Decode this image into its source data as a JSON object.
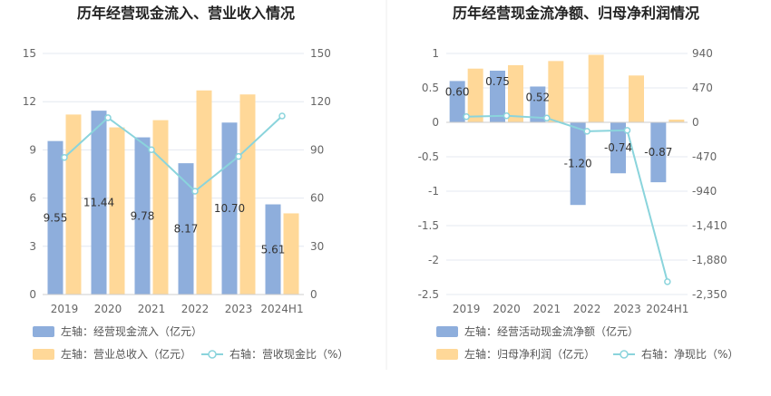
{
  "chart_data": [
    {
      "type": "bar+line",
      "title": "历年经营现金流入、营业收入情况",
      "categories": [
        "2019",
        "2020",
        "2021",
        "2022",
        "2023",
        "2024H1"
      ],
      "left_axis": {
        "ticks": [
          "0",
          "3",
          "6",
          "9",
          "12",
          "15"
        ],
        "range": [
          0,
          15
        ]
      },
      "right_axis": {
        "ticks": [
          "0",
          "30",
          "60",
          "90",
          "120",
          "150"
        ],
        "range": [
          0,
          150
        ]
      },
      "grid": true,
      "legend_position": "bottom",
      "series": [
        {
          "name": "左轴：经营现金流入（亿元）",
          "kind": "bar",
          "axis": "left",
          "color": "#8eaedc",
          "values": [
            9.55,
            11.44,
            9.78,
            8.17,
            10.7,
            5.61
          ],
          "labels": [
            "9.55",
            "11.44",
            "9.78",
            "8.17",
            "10.70",
            "5.61"
          ]
        },
        {
          "name": "左轴：营业总收入（亿元）",
          "kind": "bar",
          "axis": "left",
          "color": "#ffd898",
          "values": [
            11.2,
            10.4,
            10.85,
            12.7,
            12.45,
            5.05
          ]
        },
        {
          "name": "右轴：营收现金比（%）",
          "kind": "line",
          "axis": "right",
          "color": "#8ad4dc",
          "values": [
            85.3,
            110.0,
            90.1,
            64.3,
            85.9,
            111.1
          ]
        }
      ]
    },
    {
      "type": "bar+line",
      "title": "历年经营现金流净额、归母净利润情况",
      "categories": [
        "2019",
        "2020",
        "2021",
        "2022",
        "2023",
        "2024H1"
      ],
      "left_axis": {
        "ticks": [
          "-2.5",
          "-2",
          "-1.5",
          "-1",
          "-0.5",
          "0",
          "0.5",
          "1"
        ],
        "range": [
          -2.5,
          1
        ]
      },
      "right_axis": {
        "ticks": [
          "-2,350",
          "-1,880",
          "-1,410",
          "-940",
          "-470",
          "0",
          "470",
          "940"
        ],
        "range": [
          -2350,
          940
        ]
      },
      "grid": true,
      "legend_position": "bottom",
      "series": [
        {
          "name": "左轴：经营活动现金流净额（亿元）",
          "kind": "bar",
          "axis": "left",
          "color": "#8eaedc",
          "values": [
            0.6,
            0.75,
            0.52,
            -1.2,
            -0.74,
            -0.87
          ],
          "labels": [
            "0.60",
            "0.75",
            "0.52",
            "-1.20",
            "-0.74",
            "-0.87"
          ]
        },
        {
          "name": "左轴：归母净利润（亿元）",
          "kind": "bar",
          "axis": "left",
          "color": "#ffd898",
          "values": [
            0.78,
            0.83,
            0.89,
            0.98,
            0.68,
            0.04
          ]
        },
        {
          "name": "右轴：净现比（%）",
          "kind": "line",
          "axis": "right",
          "color": "#8ad4dc",
          "values": [
            77,
            90,
            58,
            -122,
            -109,
            -2175
          ]
        }
      ]
    }
  ]
}
